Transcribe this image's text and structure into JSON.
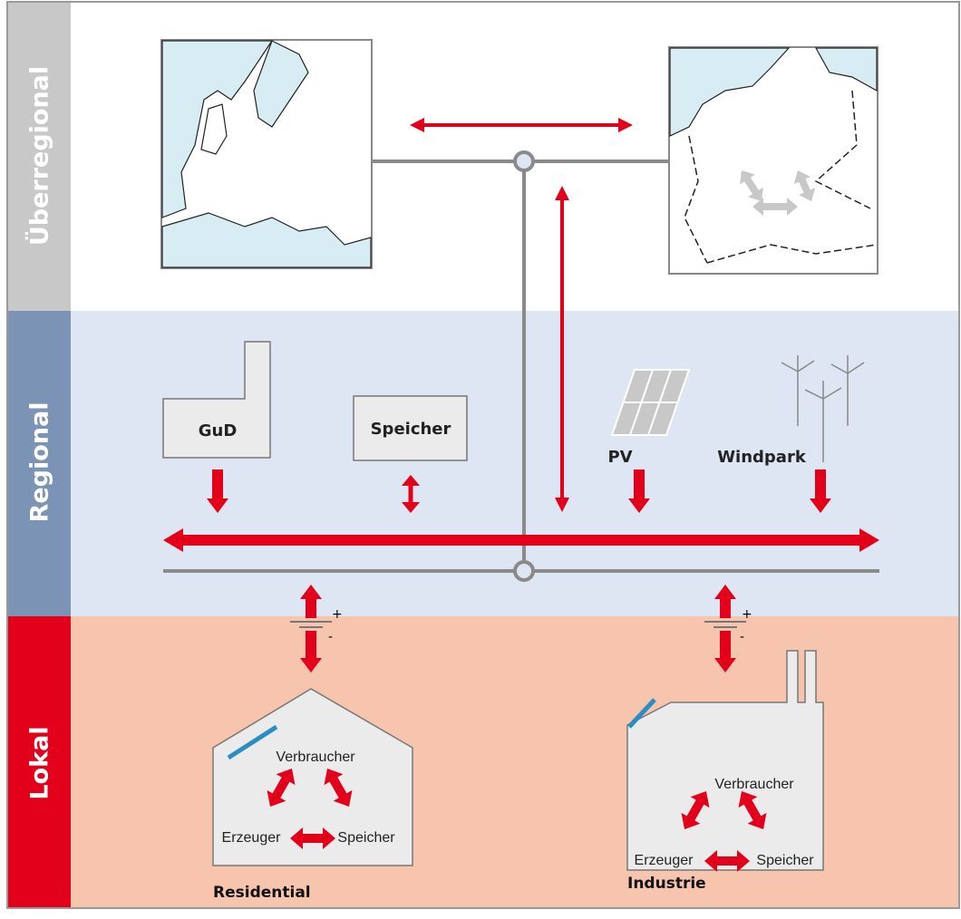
{
  "levels": [
    "Überregional",
    "Regional",
    "Lokal"
  ],
  "regional": {
    "plants": [
      "GuD",
      "Speicher",
      "PV",
      "Windpark"
    ]
  },
  "local": {
    "buildings": [
      {
        "name": "Residential",
        "plus": "+",
        "minus": "-",
        "items": [
          "Verbraucher",
          "Erzeuger",
          "Speicher"
        ]
      },
      {
        "name": "Industrie",
        "plus": "+",
        "minus": "-",
        "items": [
          "Verbraucher",
          "Erzeuger",
          "Speicher"
        ]
      }
    ]
  }
}
